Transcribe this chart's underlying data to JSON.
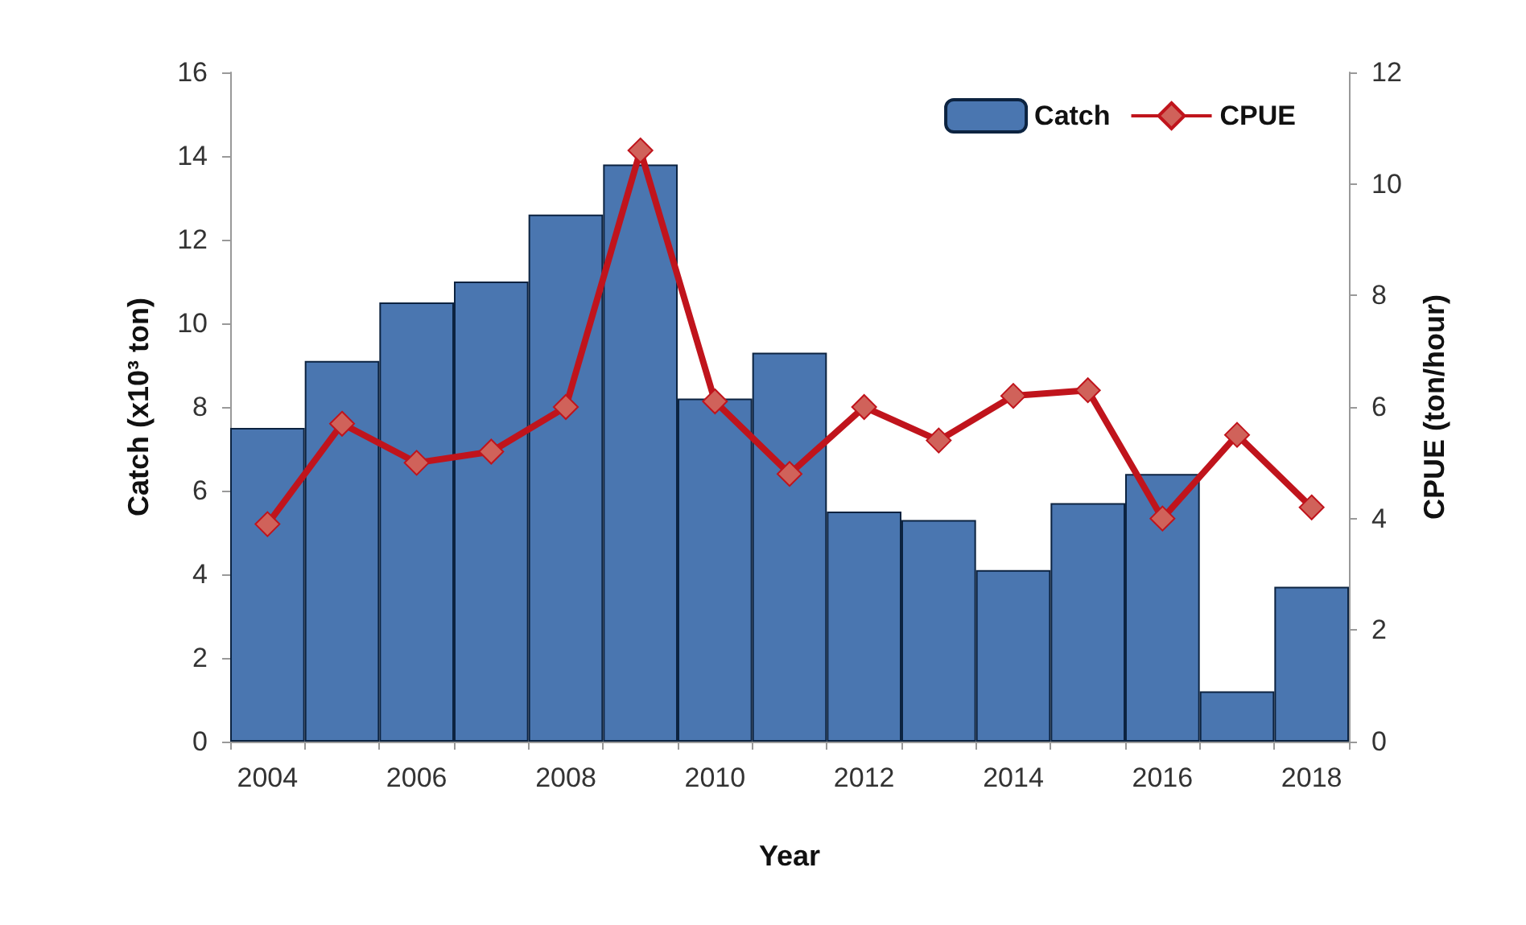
{
  "chart_data": {
    "type": "bar",
    "xlabel": "Year",
    "ylabel": "Catch (x10³ ton)",
    "y2label": "CPUE (ton/hour)",
    "categories": [
      "2004",
      null,
      "2006",
      null,
      "2008",
      null,
      "2010",
      null,
      "2012",
      null,
      "2014",
      null,
      "2016",
      null,
      "2018"
    ],
    "series": [
      {
        "name": "Catch",
        "color": "#4a76b0",
        "values": [
          7.5,
          9.1,
          10.5,
          11.0,
          12.6,
          13.8,
          8.2,
          9.3,
          5.5,
          5.3,
          4.1,
          5.7,
          6.4,
          1.2,
          3.7
        ]
      },
      {
        "name": "CPUE",
        "type": "line",
        "axis": "y2",
        "color": "#c0141c",
        "marker": "diamond",
        "values": [
          3.9,
          5.7,
          5.0,
          5.2,
          6.0,
          10.6,
          6.1,
          4.8,
          6.0,
          5.4,
          6.2,
          6.3,
          4.0,
          5.5,
          4.2
        ]
      }
    ],
    "ylim": [
      0,
      16
    ],
    "yticks": [
      0,
      2,
      4,
      6,
      8,
      10,
      12,
      14,
      16
    ],
    "y2lim": [
      0,
      12
    ],
    "y2ticks": [
      0,
      2,
      4,
      6,
      8,
      10,
      12
    ],
    "grid": false,
    "legend": "top right"
  }
}
